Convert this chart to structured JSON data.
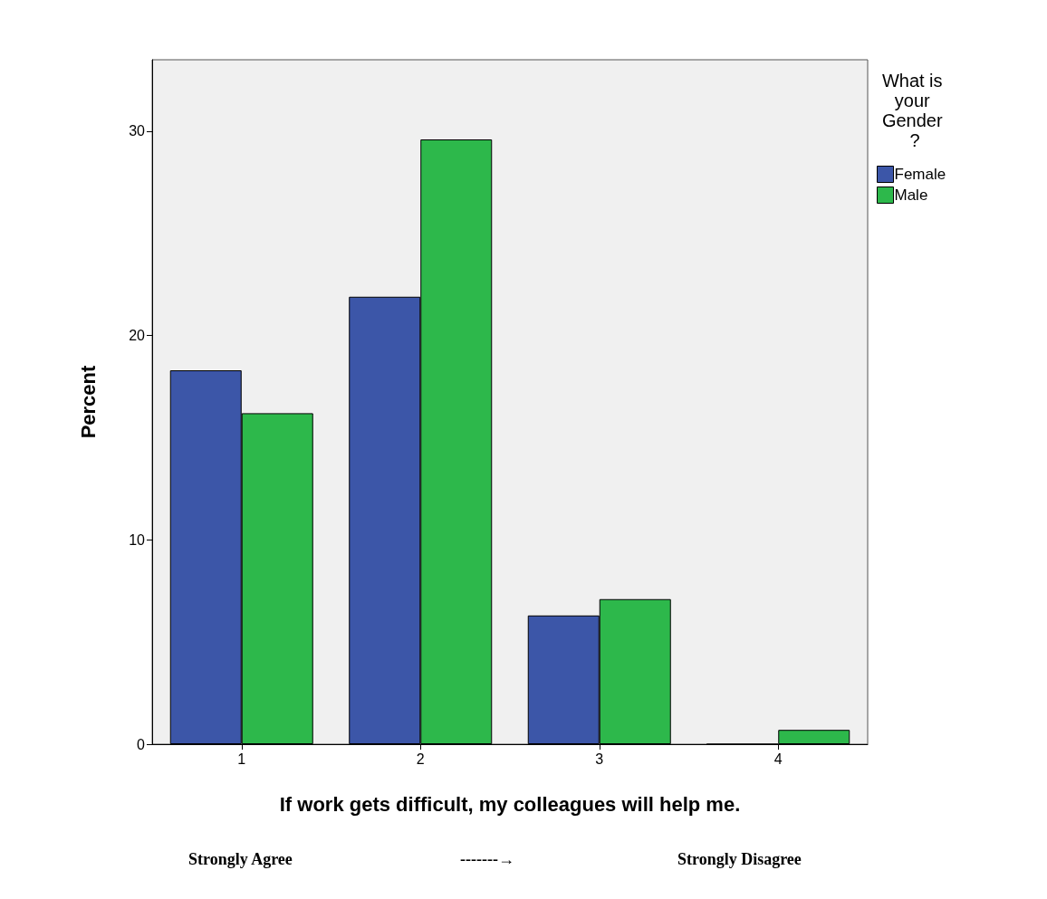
{
  "chart_data": {
    "type": "bar",
    "xlabel": "If work gets difficult, my colleagues will help me.",
    "ylabel": "Percent",
    "legend_title": "What is your Gender ?",
    "categories": [
      "1",
      "2",
      "3",
      "4"
    ],
    "series": [
      {
        "name": "Female",
        "color": "#3c56a8",
        "values": [
          18.3,
          21.9,
          6.3,
          0
        ]
      },
      {
        "name": "Male",
        "color": "#2db84b",
        "values": [
          16.2,
          29.6,
          7.1,
          0.7
        ]
      }
    ],
    "ylim": [
      0,
      33.5
    ],
    "yticks": [
      0,
      10,
      20,
      30
    ],
    "grid": false,
    "legend": "top right",
    "annotations": [
      "Strongly Agree",
      "-------→",
      "Strongly Disagree"
    ]
  }
}
